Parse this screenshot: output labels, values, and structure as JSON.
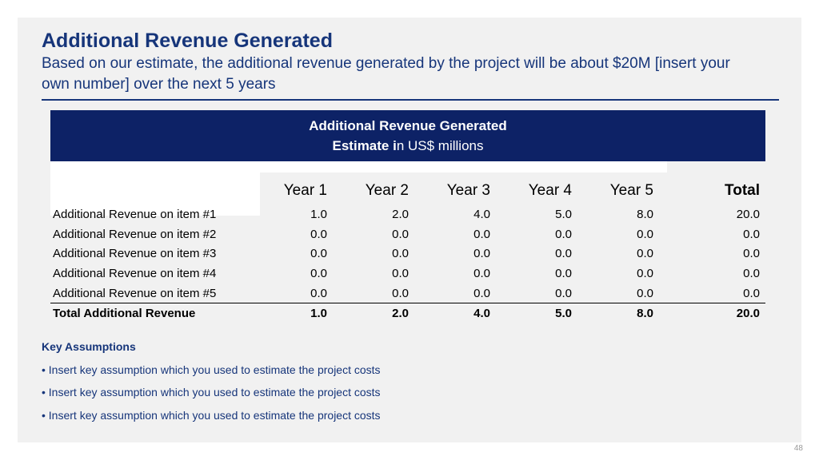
{
  "slide": {
    "title": "Additional Revenue Generated",
    "subtitle": "Based on our estimate, the additional revenue generated by the project will be about $20M [insert your own number] over the next 5 years",
    "banner": {
      "title": "Additional Revenue Generated",
      "subtitle_bold": "Estimate i",
      "subtitle_rest": "n US$ millions"
    },
    "table": {
      "headers": [
        "Year 1",
        "Year 2",
        "Year 3",
        "Year 4",
        "Year 5",
        "Total"
      ],
      "rows": [
        {
          "label": "Additional Revenue on item #1",
          "values": [
            "1.0",
            "2.0",
            "4.0",
            "5.0",
            "8.0",
            "20.0"
          ]
        },
        {
          "label": "Additional Revenue on item #2",
          "values": [
            "0.0",
            "0.0",
            "0.0",
            "0.0",
            "0.0",
            "0.0"
          ]
        },
        {
          "label": "Additional Revenue on item #3",
          "values": [
            "0.0",
            "0.0",
            "0.0",
            "0.0",
            "0.0",
            "0.0"
          ]
        },
        {
          "label": "Additional Revenue on item #4",
          "values": [
            "0.0",
            "0.0",
            "0.0",
            "0.0",
            "0.0",
            "0.0"
          ]
        },
        {
          "label": "Additional Revenue on item #5",
          "values": [
            "0.0",
            "0.0",
            "0.0",
            "0.0",
            "0.0",
            "0.0"
          ]
        }
      ],
      "total_row": {
        "label": "Total Additional Revenue",
        "values": [
          "1.0",
          "2.0",
          "4.0",
          "5.0",
          "8.0",
          "20.0"
        ]
      }
    },
    "key_assumptions": {
      "title": "Key Assumptions",
      "items": [
        "• Insert key assumption which you used to estimate the project costs",
        "• Insert key assumption which you used to estimate the project costs",
        "• Insert key assumption which you used to estimate the project costs"
      ]
    },
    "page_number": "48"
  },
  "colors": {
    "title_blue": "#16357a",
    "banner_navy": "#0d2266",
    "slide_bg": "#f1f1f1"
  }
}
